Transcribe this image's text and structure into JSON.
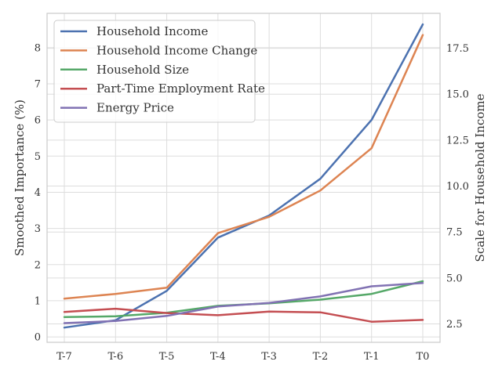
{
  "chart_data": {
    "type": "line",
    "categories": [
      "T-7",
      "T-6",
      "T-5",
      "T-4",
      "T-3",
      "T-2",
      "T-1",
      "T0"
    ],
    "ylabel": "Smoothed Importance (%)",
    "ylim": [
      -0.15,
      8.95
    ],
    "yticks": [
      0,
      1,
      2,
      3,
      4,
      5,
      6,
      7,
      8
    ],
    "y2label": "Scale for Household Income",
    "y2lim": [
      1.5,
      19.4
    ],
    "y2ticks": [
      2.5,
      5.0,
      7.5,
      10.0,
      12.5,
      15.0,
      17.5
    ],
    "y2tick_labels": [
      "2.5",
      "5.0",
      "7.5",
      "10.0",
      "12.5",
      "15.0",
      "17.5"
    ],
    "grid": true,
    "legend_position": "top-left",
    "series": [
      {
        "name": "Household Income",
        "color": "#4c72b0",
        "axis": "right",
        "values": [
          2.3,
          2.7,
          4.3,
          7.2,
          8.4,
          10.4,
          13.6,
          18.8
        ]
      },
      {
        "name": "Household Income Change",
        "color": "#dd8452",
        "axis": "left",
        "values": [
          1.06,
          1.19,
          1.36,
          2.87,
          3.32,
          4.05,
          5.22,
          8.35
        ]
      },
      {
        "name": "Household Size",
        "color": "#55a868",
        "axis": "left",
        "values": [
          0.55,
          0.57,
          0.67,
          0.86,
          0.93,
          1.03,
          1.19,
          1.54
        ]
      },
      {
        "name": "Part-Time Employment Rate",
        "color": "#c44e52",
        "axis": "left",
        "values": [
          0.69,
          0.78,
          0.66,
          0.6,
          0.7,
          0.68,
          0.42,
          0.47
        ]
      },
      {
        "name": "Energy Price",
        "color": "#8172b3",
        "axis": "left",
        "values": [
          0.38,
          0.44,
          0.58,
          0.84,
          0.94,
          1.12,
          1.4,
          1.49
        ]
      }
    ]
  }
}
